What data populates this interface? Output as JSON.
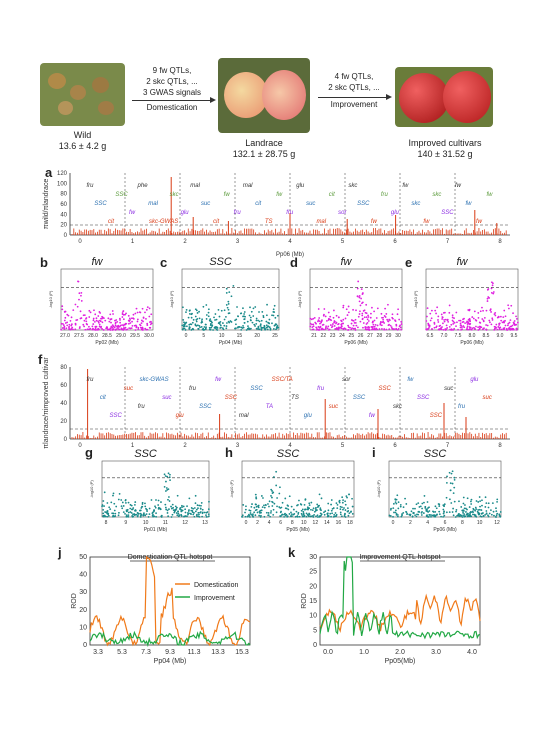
{
  "stages": [
    {
      "name": "Wild",
      "weight": "13.6 ± 4.2 g"
    },
    {
      "name": "Landrace",
      "weight": "132.1 ± 28.75 g"
    },
    {
      "name": "Improved cultivars",
      "weight": "140 ± 31.52 g"
    }
  ],
  "transitions": [
    {
      "lines": [
        "9 fw QTLs,",
        "2 skc QTLs, ...",
        "3 GWAS signals"
      ],
      "label": "Domestication"
    },
    {
      "lines": [
        "4 fw QTLs,",
        "2 skc QTLs, ..."
      ],
      "label": "Improvement"
    }
  ],
  "panels": {
    "a": "a",
    "b": "b",
    "c": "c",
    "d": "d",
    "e": "e",
    "f": "f",
    "g": "g",
    "h": "h",
    "i": "i",
    "j": "j",
    "k": "k"
  },
  "panel_a": {
    "ylabel": "πwild/πlandrace",
    "yticks": [
      "0",
      "20",
      "40",
      "60",
      "80",
      "100",
      "120"
    ],
    "xticks": [
      "0",
      "1",
      "2",
      "3",
      "4",
      "5",
      "6",
      "7",
      "8"
    ],
    "xlabel": "Pp06 (Mb)",
    "annotations": [
      "fru",
      "SSC",
      "cit",
      "SSC",
      "fw",
      "phe",
      "mal",
      "skc-GWAS",
      "skc",
      "glu",
      "mal",
      "suc",
      "cit",
      "fw",
      "fru",
      "mal",
      "cit",
      "TS",
      "fw",
      "fru",
      "glu",
      "suc",
      "mal",
      "cit",
      "sor",
      "skc",
      "SSC",
      "fw",
      "fru",
      "glu",
      "fw",
      "skc",
      "fw",
      "skc",
      "SSC",
      "fw",
      "fw",
      "fw",
      "fw"
    ]
  },
  "zoom_top": [
    {
      "id": "b",
      "title": "fw",
      "xlabel": "Pp02 (Mb)",
      "xticks": [
        "27.0",
        "27.5",
        "28.0",
        "28.5",
        "29.0",
        "29.5",
        "30.0"
      ],
      "ylabel": "-log10 (P)",
      "color": "#e020e0"
    },
    {
      "id": "c",
      "title": "SSC",
      "xlabel": "Pp04 (Mb)",
      "xticks": [
        "0",
        "5",
        "10",
        "15",
        "20",
        "25"
      ],
      "ylabel": "-log10 (P)",
      "color": "#1a8a8a"
    },
    {
      "id": "d",
      "title": "fw",
      "xlabel": "Pp06 (Mb)",
      "xticks": [
        "21",
        "22",
        "23",
        "24",
        "25",
        "26",
        "27",
        "28",
        "29",
        "30"
      ],
      "ylabel": "-log10 (P)",
      "color": "#e020e0"
    },
    {
      "id": "e",
      "title": "fw",
      "xlabel": "Pp06 (Mb)",
      "xticks": [
        "6.5",
        "7.0",
        "7.5",
        "8.0",
        "8.5",
        "9.0",
        "9.5"
      ],
      "ylabel": "-log10 (P)",
      "color": "#e020e0"
    }
  ],
  "panel_f": {
    "ylabel": "πlandrace/πimproved cultivar",
    "yticks": [
      "0",
      "20",
      "40",
      "60",
      "80"
    ],
    "xticks": [
      "0",
      "1",
      "2",
      "3",
      "4",
      "5",
      "6",
      "7",
      "8"
    ],
    "annotations": [
      "fru",
      "cit",
      "SSC",
      "suc",
      "fru",
      "skc-GWAS",
      "suc",
      "glu",
      "fru",
      "SSC",
      "fw",
      "SSC",
      "mal",
      "SSC",
      "TA",
      "SSC/TA",
      "TS",
      "glu",
      "fru",
      "suc",
      "sor",
      "SSC",
      "fw",
      "SSC",
      "skc",
      "fw",
      "SSC",
      "SSC",
      "suc",
      "fru",
      "glu",
      "suc"
    ]
  },
  "zoom_bottom": [
    {
      "id": "g",
      "title": "SSC",
      "xlabel": "Pp01 (Mb)",
      "xticks": [
        "8",
        "9",
        "10",
        "11",
        "12",
        "13"
      ],
      "ylabel": "-log10 (P)",
      "color": "#1a8a8a"
    },
    {
      "id": "h",
      "title": "SSC",
      "xlabel": "Pp05 (Mb)",
      "xticks": [
        "0",
        "2",
        "4",
        "6",
        "8",
        "10",
        "12",
        "14",
        "16",
        "18"
      ],
      "ylabel": "-log10 (P)",
      "color": "#1a8a8a"
    },
    {
      "id": "i",
      "title": "SSC",
      "xlabel": "Pp06 (Mb)",
      "xticks": [
        "0",
        "2",
        "4",
        "6",
        "8",
        "10",
        "12"
      ],
      "ylabel": "-log10 (P)",
      "color": "#1a8a8a"
    }
  ],
  "panel_j": {
    "title": "Domestication QTL hotspot",
    "ylabel": "ROD",
    "xlabel": "Pp04 (Mb)",
    "yticks": [
      "0",
      "10",
      "20",
      "30",
      "40",
      "50"
    ],
    "xticks": [
      "3.3",
      "5.3",
      "7.3",
      "9.3",
      "11.3",
      "13.3",
      "15.3"
    ],
    "legend": [
      "Domestication",
      "Improvement"
    ]
  },
  "panel_k": {
    "title": "Improvement QTL hotspot",
    "ylabel": "ROD",
    "xlabel": "Pp05(Mb)",
    "yticks": [
      "0",
      "5",
      "10",
      "15",
      "20",
      "25",
      "30"
    ],
    "xticks": [
      "0.0",
      "1.0",
      "2.0",
      "3.0",
      "4.0"
    ]
  },
  "colors": {
    "orange": "#f07a1a",
    "green": "#22a845",
    "magenta": "#e020e0",
    "teal": "#1a8a8a",
    "red": "#d93a14",
    "blue": "#2a6fb0",
    "purple": "#8a2be2"
  }
}
